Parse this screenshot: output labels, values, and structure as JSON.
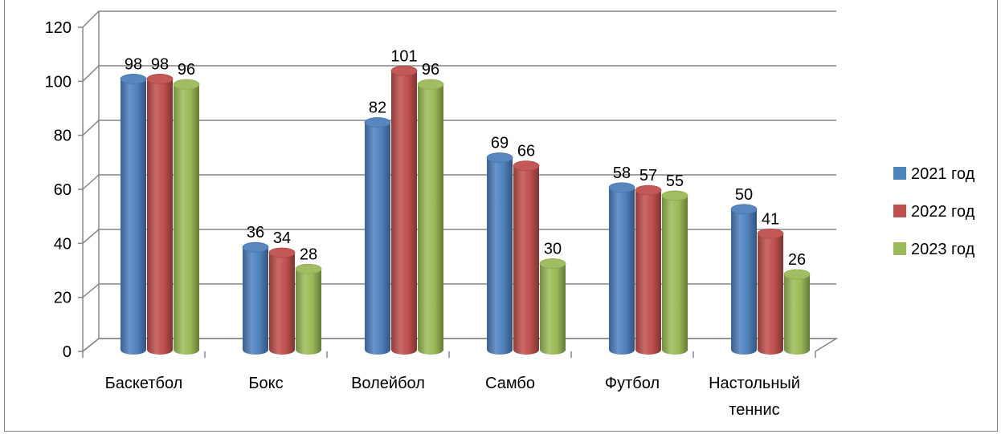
{
  "chart_data": {
    "type": "bar",
    "categories": [
      [
        "Баскетбол"
      ],
      [
        "Бокс"
      ],
      [
        "Волейбол"
      ],
      [
        "Самбо"
      ],
      [
        "Футбол"
      ],
      [
        "Настольный",
        "теннис"
      ]
    ],
    "series": [
      {
        "name": "2021 год",
        "color": "#4f81bd",
        "values": [
          98,
          36,
          82,
          69,
          58,
          50
        ]
      },
      {
        "name": "2022 год",
        "color": "#c0504d",
        "values": [
          98,
          34,
          101,
          66,
          57,
          41
        ]
      },
      {
        "name": "2023 год",
        "color": "#9bbb59",
        "values": [
          96,
          28,
          96,
          30,
          55,
          26
        ]
      }
    ],
    "y_ticks": [
      "0",
      "20",
      "40",
      "60",
      "80",
      "100",
      "120"
    ],
    "ylim": [
      0,
      120
    ],
    "grid": true,
    "legend_position": "right",
    "style": "3d-cylinder"
  }
}
